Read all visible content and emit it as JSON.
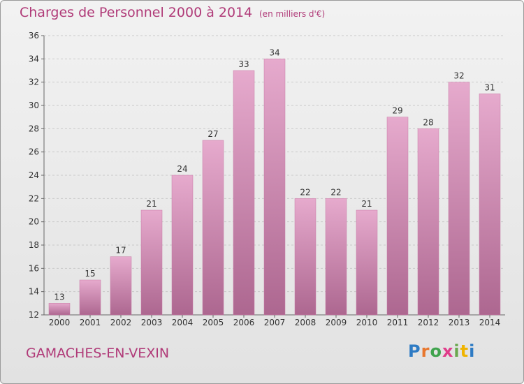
{
  "header": {
    "title": "Charges de Personnel 2000 à 2014",
    "subtitle": "(en milliers d'€)"
  },
  "footer": {
    "commune": "GAMACHES-EN-VEXIN",
    "logo_text": "Proxiti",
    "logo_colors": [
      "#2e7bc4",
      "#e8772e",
      "#3fa34d",
      "#e03c8a",
      "#6aa84f",
      "#f0b400",
      "#2e7bc4"
    ]
  },
  "chart_data": {
    "type": "bar",
    "title": "Charges de Personnel 2000 à 2014",
    "subtitle": "(en milliers d'€)",
    "categories": [
      "2000",
      "2001",
      "2002",
      "2003",
      "2004",
      "2005",
      "2006",
      "2007",
      "2008",
      "2009",
      "2010",
      "2011",
      "2012",
      "2013",
      "2014"
    ],
    "values": [
      13,
      15,
      17,
      21,
      24,
      27,
      33,
      34,
      22,
      22,
      21,
      29,
      28,
      32,
      31
    ],
    "ylim": [
      12,
      36
    ],
    "yticks": [
      12,
      14,
      16,
      18,
      20,
      22,
      24,
      26,
      28,
      30,
      32,
      34,
      36
    ],
    "grid": true,
    "bar_color": "#d48cb6",
    "bar_color_dark": "#b5638f"
  }
}
